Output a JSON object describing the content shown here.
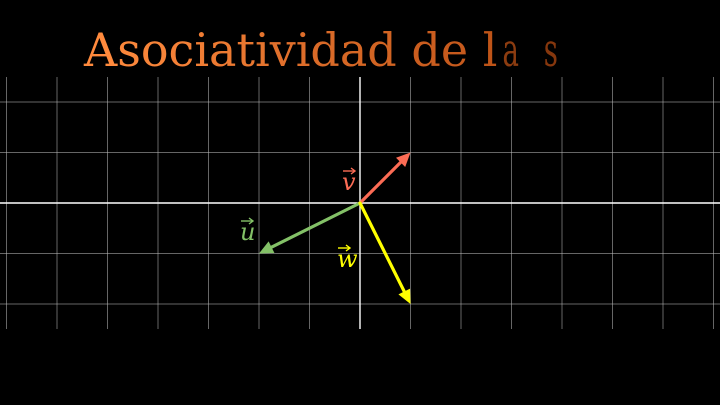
{
  "title": {
    "text": "Asociatividad de la s",
    "visible_fraction": 0.87,
    "color_start": "#ff8a3d",
    "color_end": "#b34a12"
  },
  "plane": {
    "x_range": [
      -7,
      7
    ],
    "y_range": [
      -2.5,
      2.5
    ],
    "grid_color": "#b9b9b9",
    "axis_color": "#ffffff"
  },
  "vectors": [
    {
      "id": "v",
      "label": "v",
      "x": 1,
      "y": 1,
      "color": "#fc6c55"
    },
    {
      "id": "u",
      "label": "u",
      "x": -2,
      "y": -1,
      "color": "#83c167"
    },
    {
      "id": "w",
      "label": "w",
      "x": 1,
      "y": -2,
      "color": "#ffff00"
    }
  ]
}
